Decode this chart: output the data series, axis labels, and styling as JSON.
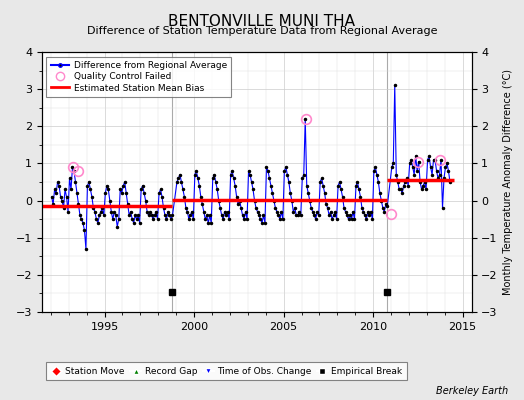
{
  "title": "BENTONVILLE MUNI THA",
  "subtitle": "Difference of Station Temperature Data from Regional Average",
  "ylabel": "Monthly Temperature Anomaly Difference (°C)",
  "xlabel_credit": "Berkeley Earth",
  "ylim": [
    -3,
    4
  ],
  "xlim": [
    1991.5,
    2015.5
  ],
  "yticks": [
    -3,
    -2,
    -1,
    0,
    1,
    2,
    3,
    4
  ],
  "xticks": [
    1995,
    2000,
    2005,
    2010,
    2015
  ],
  "fig_bg_color": "#e8e8e8",
  "plot_bg_color": "#ffffff",
  "grid_color": "#cccccc",
  "vertical_lines": [
    1998.75,
    2010.75
  ],
  "empirical_breaks": [
    1998.75,
    2010.75
  ],
  "bias_segments": [
    {
      "x_start": 1991.5,
      "x_end": 1998.75,
      "bias": -0.15
    },
    {
      "x_start": 1998.75,
      "x_end": 2010.75,
      "bias": 0.02
    },
    {
      "x_start": 2010.75,
      "x_end": 2014.5,
      "bias": 0.55
    }
  ],
  "qc_failed_points": [
    [
      1993.25,
      0.9
    ],
    [
      1993.5,
      0.8
    ],
    [
      2006.25,
      2.2
    ],
    [
      2011.0,
      -0.35
    ],
    [
      2012.5,
      1.05
    ],
    [
      2013.75,
      1.1
    ]
  ],
  "time_series": [
    [
      1992.042,
      0.1
    ],
    [
      1992.125,
      -0.1
    ],
    [
      1992.208,
      0.3
    ],
    [
      1992.292,
      0.2
    ],
    [
      1992.375,
      0.5
    ],
    [
      1992.458,
      0.4
    ],
    [
      1992.542,
      0.1
    ],
    [
      1992.625,
      0.0
    ],
    [
      1992.708,
      -0.2
    ],
    [
      1992.792,
      0.3
    ],
    [
      1992.875,
      0.1
    ],
    [
      1992.958,
      -0.3
    ],
    [
      1993.042,
      0.6
    ],
    [
      1993.125,
      0.3
    ],
    [
      1993.208,
      0.9
    ],
    [
      1993.292,
      0.8
    ],
    [
      1993.375,
      0.5
    ],
    [
      1993.458,
      0.2
    ],
    [
      1993.542,
      -0.1
    ],
    [
      1993.625,
      -0.4
    ],
    [
      1993.708,
      -0.5
    ],
    [
      1993.792,
      -0.6
    ],
    [
      1993.875,
      -0.8
    ],
    [
      1993.958,
      -1.3
    ],
    [
      1994.042,
      0.4
    ],
    [
      1994.125,
      0.5
    ],
    [
      1994.208,
      0.3
    ],
    [
      1994.292,
      0.1
    ],
    [
      1994.375,
      -0.2
    ],
    [
      1994.458,
      -0.3
    ],
    [
      1994.542,
      -0.5
    ],
    [
      1994.625,
      -0.6
    ],
    [
      1994.708,
      -0.4
    ],
    [
      1994.792,
      -0.3
    ],
    [
      1994.875,
      -0.2
    ],
    [
      1994.958,
      -0.4
    ],
    [
      1995.042,
      0.2
    ],
    [
      1995.125,
      0.4
    ],
    [
      1995.208,
      0.3
    ],
    [
      1995.292,
      0.0
    ],
    [
      1995.375,
      -0.3
    ],
    [
      1995.458,
      -0.5
    ],
    [
      1995.542,
      -0.3
    ],
    [
      1995.625,
      -0.4
    ],
    [
      1995.708,
      -0.7
    ],
    [
      1995.792,
      -0.5
    ],
    [
      1995.875,
      0.3
    ],
    [
      1995.958,
      0.2
    ],
    [
      1996.042,
      0.4
    ],
    [
      1996.125,
      0.5
    ],
    [
      1996.208,
      0.2
    ],
    [
      1996.292,
      -0.1
    ],
    [
      1996.375,
      -0.4
    ],
    [
      1996.458,
      -0.3
    ],
    [
      1996.542,
      -0.5
    ],
    [
      1996.625,
      -0.6
    ],
    [
      1996.708,
      -0.4
    ],
    [
      1996.792,
      -0.5
    ],
    [
      1996.875,
      -0.4
    ],
    [
      1996.958,
      -0.6
    ],
    [
      1997.042,
      0.3
    ],
    [
      1997.125,
      0.4
    ],
    [
      1997.208,
      0.2
    ],
    [
      1997.292,
      0.0
    ],
    [
      1997.375,
      -0.3
    ],
    [
      1997.458,
      -0.4
    ],
    [
      1997.542,
      -0.3
    ],
    [
      1997.625,
      -0.4
    ],
    [
      1997.708,
      -0.5
    ],
    [
      1997.792,
      -0.4
    ],
    [
      1997.875,
      -0.3
    ],
    [
      1997.958,
      -0.5
    ],
    [
      1998.042,
      0.2
    ],
    [
      1998.125,
      0.3
    ],
    [
      1998.208,
      0.1
    ],
    [
      1998.292,
      -0.2
    ],
    [
      1998.375,
      -0.4
    ],
    [
      1998.458,
      -0.5
    ],
    [
      1998.542,
      -0.3
    ],
    [
      1998.625,
      -0.4
    ],
    [
      1998.708,
      -0.5
    ],
    [
      1998.792,
      -0.4
    ],
    [
      1999.042,
      0.5
    ],
    [
      1999.125,
      0.6
    ],
    [
      1999.208,
      0.7
    ],
    [
      1999.292,
      0.5
    ],
    [
      1999.375,
      0.3
    ],
    [
      1999.458,
      0.1
    ],
    [
      1999.542,
      -0.2
    ],
    [
      1999.625,
      -0.3
    ],
    [
      1999.708,
      -0.5
    ],
    [
      1999.792,
      -0.4
    ],
    [
      1999.875,
      -0.3
    ],
    [
      1999.958,
      -0.5
    ],
    [
      2000.042,
      0.7
    ],
    [
      2000.125,
      0.8
    ],
    [
      2000.208,
      0.6
    ],
    [
      2000.292,
      0.4
    ],
    [
      2000.375,
      0.1
    ],
    [
      2000.458,
      -0.1
    ],
    [
      2000.542,
      -0.3
    ],
    [
      2000.625,
      -0.5
    ],
    [
      2000.708,
      -0.4
    ],
    [
      2000.792,
      -0.6
    ],
    [
      2000.875,
      -0.4
    ],
    [
      2000.958,
      -0.6
    ],
    [
      2001.042,
      0.6
    ],
    [
      2001.125,
      0.7
    ],
    [
      2001.208,
      0.5
    ],
    [
      2001.292,
      0.3
    ],
    [
      2001.375,
      0.0
    ],
    [
      2001.458,
      -0.2
    ],
    [
      2001.542,
      -0.4
    ],
    [
      2001.625,
      -0.5
    ],
    [
      2001.708,
      -0.3
    ],
    [
      2001.792,
      -0.4
    ],
    [
      2001.875,
      -0.3
    ],
    [
      2001.958,
      -0.5
    ],
    [
      2002.042,
      0.7
    ],
    [
      2002.125,
      0.8
    ],
    [
      2002.208,
      0.6
    ],
    [
      2002.292,
      0.4
    ],
    [
      2002.375,
      0.1
    ],
    [
      2002.458,
      -0.1
    ],
    [
      2002.542,
      0.0
    ],
    [
      2002.625,
      -0.2
    ],
    [
      2002.708,
      -0.4
    ],
    [
      2002.792,
      -0.5
    ],
    [
      2002.875,
      -0.3
    ],
    [
      2002.958,
      -0.5
    ],
    [
      2003.042,
      0.8
    ],
    [
      2003.125,
      0.7
    ],
    [
      2003.208,
      0.5
    ],
    [
      2003.292,
      0.3
    ],
    [
      2003.375,
      0.0
    ],
    [
      2003.458,
      -0.2
    ],
    [
      2003.542,
      -0.3
    ],
    [
      2003.625,
      -0.4
    ],
    [
      2003.708,
      -0.5
    ],
    [
      2003.792,
      -0.6
    ],
    [
      2003.875,
      -0.4
    ],
    [
      2003.958,
      -0.6
    ],
    [
      2004.042,
      0.9
    ],
    [
      2004.125,
      0.8
    ],
    [
      2004.208,
      0.6
    ],
    [
      2004.292,
      0.4
    ],
    [
      2004.375,
      0.2
    ],
    [
      2004.458,
      0.0
    ],
    [
      2004.542,
      -0.2
    ],
    [
      2004.625,
      -0.3
    ],
    [
      2004.708,
      -0.4
    ],
    [
      2004.792,
      -0.5
    ],
    [
      2004.875,
      -0.3
    ],
    [
      2004.958,
      -0.5
    ],
    [
      2005.042,
      0.8
    ],
    [
      2005.125,
      0.9
    ],
    [
      2005.208,
      0.7
    ],
    [
      2005.292,
      0.5
    ],
    [
      2005.375,
      0.2
    ],
    [
      2005.458,
      0.0
    ],
    [
      2005.542,
      -0.3
    ],
    [
      2005.625,
      -0.2
    ],
    [
      2005.708,
      -0.4
    ],
    [
      2005.792,
      -0.4
    ],
    [
      2005.875,
      -0.3
    ],
    [
      2005.958,
      -0.4
    ],
    [
      2006.042,
      0.6
    ],
    [
      2006.125,
      0.7
    ],
    [
      2006.208,
      2.2
    ],
    [
      2006.292,
      0.4
    ],
    [
      2006.375,
      0.2
    ],
    [
      2006.458,
      0.0
    ],
    [
      2006.542,
      -0.2
    ],
    [
      2006.625,
      -0.3
    ],
    [
      2006.708,
      -0.4
    ],
    [
      2006.792,
      -0.5
    ],
    [
      2006.875,
      -0.3
    ],
    [
      2006.958,
      -0.4
    ],
    [
      2007.042,
      0.5
    ],
    [
      2007.125,
      0.6
    ],
    [
      2007.208,
      0.4
    ],
    [
      2007.292,
      0.2
    ],
    [
      2007.375,
      -0.1
    ],
    [
      2007.458,
      -0.2
    ],
    [
      2007.542,
      -0.4
    ],
    [
      2007.625,
      -0.3
    ],
    [
      2007.708,
      -0.5
    ],
    [
      2007.792,
      -0.4
    ],
    [
      2007.875,
      -0.3
    ],
    [
      2007.958,
      -0.5
    ],
    [
      2008.042,
      0.4
    ],
    [
      2008.125,
      0.5
    ],
    [
      2008.208,
      0.3
    ],
    [
      2008.292,
      0.1
    ],
    [
      2008.375,
      -0.2
    ],
    [
      2008.458,
      -0.3
    ],
    [
      2008.542,
      -0.4
    ],
    [
      2008.625,
      -0.5
    ],
    [
      2008.708,
      -0.4
    ],
    [
      2008.792,
      -0.5
    ],
    [
      2008.875,
      -0.3
    ],
    [
      2008.958,
      -0.5
    ],
    [
      2009.042,
      0.4
    ],
    [
      2009.125,
      0.5
    ],
    [
      2009.208,
      0.3
    ],
    [
      2009.292,
      0.1
    ],
    [
      2009.375,
      -0.2
    ],
    [
      2009.458,
      -0.3
    ],
    [
      2009.542,
      -0.4
    ],
    [
      2009.625,
      -0.5
    ],
    [
      2009.708,
      -0.3
    ],
    [
      2009.792,
      -0.4
    ],
    [
      2009.875,
      -0.3
    ],
    [
      2009.958,
      -0.5
    ],
    [
      2010.042,
      0.8
    ],
    [
      2010.125,
      0.9
    ],
    [
      2010.208,
      0.7
    ],
    [
      2010.292,
      0.5
    ],
    [
      2010.375,
      0.2
    ],
    [
      2010.458,
      0.0
    ],
    [
      2010.542,
      -0.2
    ],
    [
      2010.625,
      -0.3
    ],
    [
      2010.708,
      -0.1
    ],
    [
      2010.792,
      -0.15
    ],
    [
      2011.042,
      0.9
    ],
    [
      2011.125,
      1.0
    ],
    [
      2011.208,
      3.1
    ],
    [
      2011.292,
      0.7
    ],
    [
      2011.375,
      0.5
    ],
    [
      2011.458,
      0.3
    ],
    [
      2011.542,
      0.3
    ],
    [
      2011.625,
      0.2
    ],
    [
      2011.708,
      0.4
    ],
    [
      2011.792,
      0.5
    ],
    [
      2011.875,
      0.6
    ],
    [
      2011.958,
      0.4
    ],
    [
      2012.042,
      1.0
    ],
    [
      2012.125,
      1.1
    ],
    [
      2012.208,
      0.9
    ],
    [
      2012.292,
      0.7
    ],
    [
      2012.375,
      1.2
    ],
    [
      2012.458,
      0.8
    ],
    [
      2012.542,
      1.05
    ],
    [
      2012.625,
      0.5
    ],
    [
      2012.708,
      0.3
    ],
    [
      2012.792,
      0.4
    ],
    [
      2012.875,
      0.5
    ],
    [
      2012.958,
      0.3
    ],
    [
      2013.042,
      1.1
    ],
    [
      2013.125,
      1.2
    ],
    [
      2013.208,
      0.9
    ],
    [
      2013.292,
      0.7
    ],
    [
      2013.375,
      1.1
    ],
    [
      2013.458,
      1.1
    ],
    [
      2013.542,
      0.8
    ],
    [
      2013.625,
      0.6
    ],
    [
      2013.708,
      0.7
    ],
    [
      2013.792,
      1.1
    ],
    [
      2013.875,
      -0.2
    ],
    [
      2013.958,
      0.6
    ],
    [
      2014.042,
      0.9
    ],
    [
      2014.125,
      1.0
    ],
    [
      2014.208,
      0.8
    ],
    [
      2014.292,
      0.5
    ]
  ]
}
